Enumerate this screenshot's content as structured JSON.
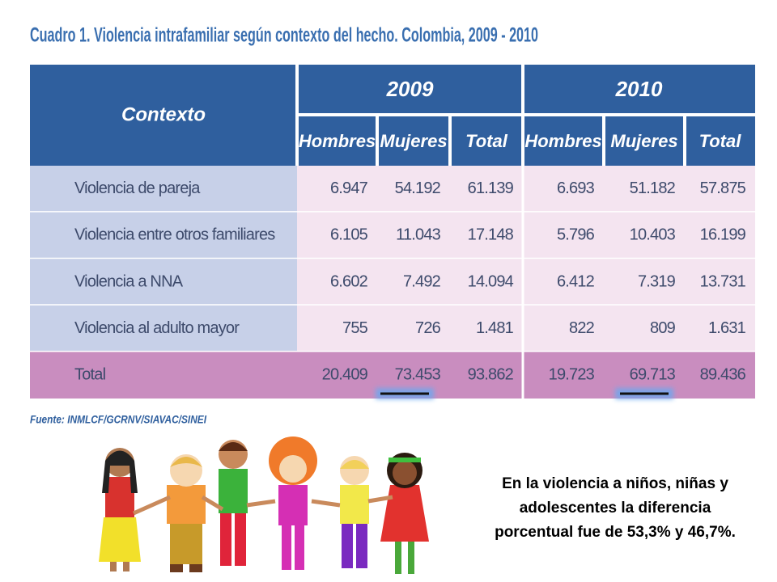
{
  "title": "Cuadro 1. Violencia intrafamiliar según contexto del hecho. Colombia, 2009 - 2010",
  "table": {
    "header": {
      "context": "Contexto",
      "years": [
        "2009",
        "2010"
      ],
      "columns": [
        "Hombres",
        "Mujeres",
        "Total",
        "Hombres",
        "Mujeres",
        "Total"
      ]
    },
    "rows": [
      [
        "Violencia de pareja",
        "6.947",
        "54.192",
        "61.139",
        "6.693",
        "51.182",
        "57.875"
      ],
      [
        "Violencia entre otros familiares",
        "6.105",
        "11.043",
        "17.148",
        "5.796",
        "10.403",
        "16.199"
      ],
      [
        "Violencia a NNA",
        "6.602",
        "7.492",
        "14.094",
        "6.412",
        "7.319",
        "13.731"
      ],
      [
        "Violencia al adulto mayor",
        "755",
        "726",
        "1.481",
        "822",
        "809",
        "1.631"
      ],
      [
        "Total",
        "20.409",
        "73.453",
        "93.862",
        "19.723",
        "69.713",
        "89.436"
      ]
    ]
  },
  "source": "Fuente: INMLCF/GCRNV/SIAVAC/SINEI",
  "caption": [
    "En la violencia a niños, niñas y",
    "adolescentes la diferencia",
    "porcentual fue de 53,3% y 46,7%."
  ]
}
